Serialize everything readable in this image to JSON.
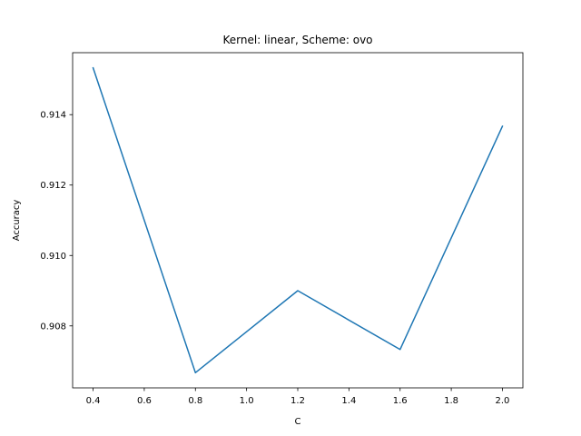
{
  "chart_data": {
    "type": "line",
    "title": "Kernel: linear, Scheme: ovo",
    "xlabel": "C",
    "ylabel": "Accuracy",
    "x": [
      0.4,
      0.8,
      1.2,
      1.6,
      2.0
    ],
    "series": [
      {
        "values": [
          0.91533,
          0.90667,
          0.909,
          0.90733,
          0.91367
        ],
        "color": "#1f77b4"
      }
    ],
    "xlim": [
      0.32,
      2.08
    ],
    "ylim": [
      0.90624,
      0.91576
    ],
    "xticks": [
      0.4,
      0.6,
      0.8,
      1.0,
      1.2,
      1.4,
      1.6,
      1.8,
      2.0
    ],
    "xtick_labels": [
      "0.4",
      "0.6",
      "0.8",
      "1.0",
      "1.2",
      "1.4",
      "1.6",
      "1.8",
      "2.0"
    ],
    "yticks": [
      0.908,
      0.91,
      0.912,
      0.914
    ],
    "ytick_labels": [
      "0.908",
      "0.910",
      "0.912",
      "0.914"
    ],
    "grid": false,
    "legend": "none"
  }
}
